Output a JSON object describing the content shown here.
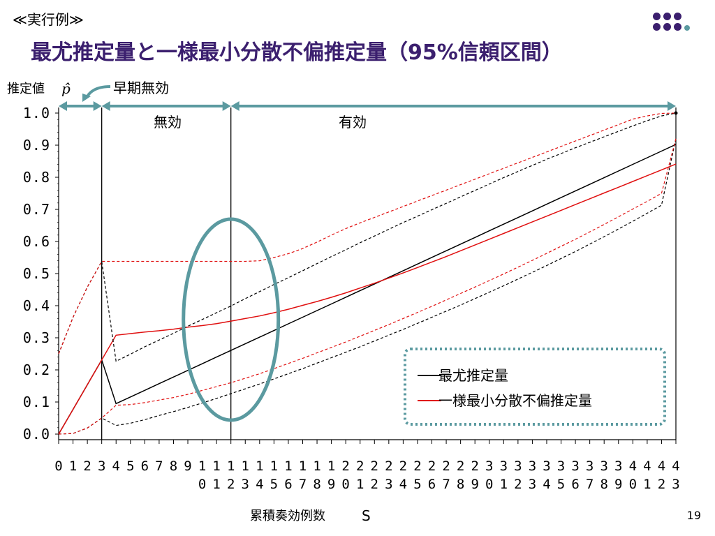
{
  "slide": {
    "top_label": "≪実行例≫",
    "title": "最尤推定量と一様最小分散不偏推定量（95%信頼区間）",
    "page_number": "19",
    "logo_colors": [
      "#3b1f6e",
      "#5b9aa0"
    ]
  },
  "chart_data": {
    "type": "line",
    "title": "",
    "ylabel": "推定値",
    "ylabel_symbol": "p̂",
    "xlabel": "累積奏効例数",
    "xlabel_symbol": "S",
    "ylim": [
      0.0,
      1.0
    ],
    "yticks": [
      "1.0",
      "0.9",
      "0.8",
      "0.7",
      "0.6",
      "0.5",
      "0.4",
      "0.3",
      "0.2",
      "0.1",
      "0.0"
    ],
    "xticks": [
      "0",
      "1",
      "2",
      "3",
      "4",
      "5",
      "6",
      "7",
      "8",
      "9",
      "10",
      "11",
      "12",
      "13",
      "14",
      "15",
      "16",
      "17",
      "18",
      "19",
      "20",
      "21",
      "22",
      "23",
      "24",
      "25",
      "26",
      "27",
      "28",
      "29",
      "30",
      "31",
      "32",
      "33",
      "34",
      "35",
      "36",
      "37",
      "38",
      "39",
      "40",
      "41",
      "42",
      "43"
    ],
    "x": [
      0,
      1,
      2,
      3,
      4,
      5,
      6,
      7,
      8,
      9,
      10,
      11,
      12,
      13,
      14,
      15,
      16,
      17,
      18,
      19,
      20,
      21,
      22,
      23,
      24,
      25,
      26,
      27,
      28,
      29,
      30,
      31,
      32,
      33,
      34,
      35,
      36,
      37,
      38,
      39,
      40,
      41,
      42,
      43
    ],
    "annotations": {
      "early_ineffective": "早期無効",
      "ineffective": "無効",
      "effective": "有効"
    },
    "series": [
      {
        "name": "最尤推定量",
        "color": "#000000",
        "style": "solid",
        "values": [
          0.0,
          0.077,
          0.154,
          0.231,
          0.095,
          0.1157,
          0.1364,
          0.1571,
          0.1778,
          0.1985,
          0.2192,
          0.2399,
          0.2606,
          0.2813,
          0.302,
          0.3227,
          0.3434,
          0.3641,
          0.3848,
          0.4055,
          0.4262,
          0.4469,
          0.4676,
          0.4883,
          0.509,
          0.5297,
          0.5504,
          0.5711,
          0.5918,
          0.6125,
          0.6332,
          0.6539,
          0.6746,
          0.6953,
          0.716,
          0.7367,
          0.7574,
          0.7781,
          0.7988,
          0.8195,
          0.8402,
          0.8609,
          0.8816,
          0.9023
        ]
      },
      {
        "name": "一様最小分散不偏推定量",
        "color": "#e01010",
        "style": "solid",
        "values": [
          0.0,
          0.077,
          0.154,
          0.231,
          0.308,
          0.313,
          0.318,
          0.322,
          0.327,
          0.333,
          0.338,
          0.344,
          0.352,
          0.36,
          0.368,
          0.378,
          0.389,
          0.401,
          0.413,
          0.426,
          0.44,
          0.455,
          0.47,
          0.486,
          0.502,
          0.519,
          0.536,
          0.553,
          0.571,
          0.589,
          0.607,
          0.625,
          0.643,
          0.661,
          0.679,
          0.697,
          0.715,
          0.733,
          0.751,
          0.769,
          0.787,
          0.805,
          0.823,
          0.841
        ]
      },
      {
        "name": "",
        "color": "#000000",
        "style": "dashed",
        "values": [
          0.25,
          0.364,
          0.458,
          0.538,
          0.227,
          0.249,
          0.272,
          0.293,
          0.314,
          0.336,
          0.357,
          0.378,
          0.399,
          0.422,
          0.444,
          0.466,
          0.487,
          0.509,
          0.531,
          0.553,
          0.574,
          0.596,
          0.617,
          0.638,
          0.659,
          0.679,
          0.699,
          0.719,
          0.739,
          0.759,
          0.779,
          0.799,
          0.818,
          0.837,
          0.856,
          0.874,
          0.892,
          0.909,
          0.926,
          0.943,
          0.96,
          0.976,
          0.991,
          1.0
        ]
      },
      {
        "name": "",
        "color": "#e01010",
        "style": "dashed",
        "values": [
          0.25,
          0.364,
          0.458,
          0.538,
          0.538,
          0.538,
          0.538,
          0.538,
          0.538,
          0.538,
          0.538,
          0.538,
          0.538,
          0.538,
          0.54,
          0.55,
          0.562,
          0.578,
          0.598,
          0.62,
          0.64,
          0.658,
          0.675,
          0.692,
          0.709,
          0.726,
          0.743,
          0.76,
          0.777,
          0.794,
          0.811,
          0.828,
          0.845,
          0.862,
          0.879,
          0.896,
          0.913,
          0.93,
          0.947,
          0.964,
          0.981,
          0.991,
          0.999,
          1.0
        ]
      },
      {
        "name": "",
        "color": "#000000",
        "style": "dashed",
        "values": [
          0.0,
          0.002,
          0.019,
          0.05,
          0.027,
          0.034,
          0.045,
          0.058,
          0.07,
          0.083,
          0.097,
          0.111,
          0.126,
          0.141,
          0.156,
          0.172,
          0.188,
          0.204,
          0.221,
          0.238,
          0.255,
          0.272,
          0.29,
          0.308,
          0.326,
          0.345,
          0.364,
          0.383,
          0.402,
          0.422,
          0.442,
          0.462,
          0.483,
          0.504,
          0.525,
          0.547,
          0.569,
          0.592,
          0.615,
          0.639,
          0.663,
          0.688,
          0.713,
          0.92
        ]
      },
      {
        "name": "",
        "color": "#e01010",
        "style": "dashed",
        "values": [
          0.0,
          0.002,
          0.019,
          0.05,
          0.09,
          0.092,
          0.098,
          0.106,
          0.114,
          0.124,
          0.136,
          0.148,
          0.16,
          0.174,
          0.188,
          0.204,
          0.22,
          0.236,
          0.253,
          0.27,
          0.287,
          0.305,
          0.323,
          0.341,
          0.36,
          0.379,
          0.398,
          0.418,
          0.438,
          0.458,
          0.478,
          0.499,
          0.52,
          0.541,
          0.563,
          0.585,
          0.607,
          0.63,
          0.653,
          0.677,
          0.701,
          0.725,
          0.75,
          0.92
        ]
      }
    ],
    "grid": false,
    "legend": "bottom-right"
  }
}
